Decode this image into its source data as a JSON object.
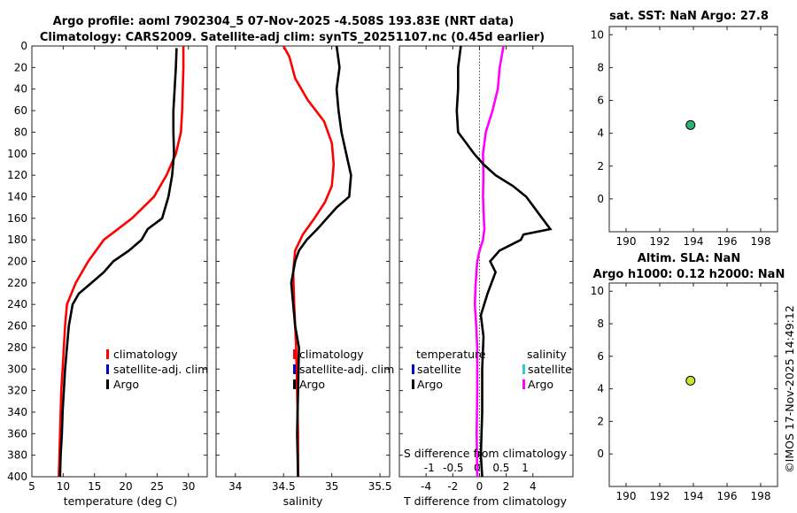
{
  "titles": {
    "main_line1": "Argo profile: aoml 7902304_5 07-Nov-2025 -4.508S 193.83E (NRT data)",
    "main_line2": "Climatology: CARS2009. Satellite-adj clim: synTS_20251107.nc (0.45d earlier)",
    "sst": "sat. SST: NaN Argo: 27.8",
    "sla_line1": "Altim. SLA: NaN",
    "sla_line2": "Argo h1000: 0.12 h2000: NaN"
  },
  "footer": {
    "timestamp": "©IMOS 17-Nov-2025 14:49:12"
  },
  "colors": {
    "climatology": "#ff0000",
    "satellite": "#0000cc",
    "argo": "#000000",
    "argo_salinity_diff": "#ff00ff",
    "satellite_salinity": "#33cccc",
    "sst_marker": "#2db37a",
    "sla_marker": "#c8e630"
  },
  "chart_data": [
    {
      "id": "temperature",
      "type": "line",
      "xlabel": "temperature (deg C)",
      "ylabel": "",
      "xlim": [
        5,
        33
      ],
      "ylim": [
        400,
        0
      ],
      "xticks": [
        "5",
        "10",
        "15",
        "20",
        "25",
        "30"
      ],
      "xtick_values": [
        5,
        10,
        15,
        20,
        25,
        30
      ],
      "yticks": [
        "0",
        "20",
        "40",
        "60",
        "80",
        "100",
        "120",
        "140",
        "160",
        "180",
        "200",
        "220",
        "240",
        "260",
        "280",
        "300",
        "320",
        "340",
        "360",
        "380",
        "400"
      ],
      "ytick_values": [
        0,
        20,
        40,
        60,
        80,
        100,
        120,
        140,
        160,
        180,
        200,
        220,
        240,
        260,
        280,
        300,
        320,
        340,
        360,
        380,
        400
      ],
      "legend": [
        "climatology",
        "satellite-adj. clim",
        "Argo"
      ],
      "series": [
        {
          "name": "climatology",
          "color": "#ff0000",
          "points": [
            [
              29.2,
              0
            ],
            [
              29.2,
              20
            ],
            [
              29.1,
              40
            ],
            [
              29.0,
              60
            ],
            [
              28.8,
              80
            ],
            [
              28.0,
              100
            ],
            [
              26.5,
              120
            ],
            [
              24.5,
              140
            ],
            [
              21,
              160
            ],
            [
              16.5,
              180
            ],
            [
              14,
              200
            ],
            [
              12,
              220
            ],
            [
              10.6,
              240
            ],
            [
              10.3,
              260
            ],
            [
              10.1,
              280
            ],
            [
              9.9,
              300
            ],
            [
              9.7,
              320
            ],
            [
              9.6,
              340
            ],
            [
              9.5,
              360
            ],
            [
              9.4,
              380
            ],
            [
              9.3,
              400
            ]
          ]
        },
        {
          "name": "Argo",
          "color": "#000000",
          "points": [
            [
              28.1,
              2
            ],
            [
              28.0,
              20
            ],
            [
              27.8,
              40
            ],
            [
              27.6,
              60
            ],
            [
              27.6,
              80
            ],
            [
              27.7,
              100
            ],
            [
              27.4,
              120
            ],
            [
              26.8,
              140
            ],
            [
              25.8,
              160
            ],
            [
              23.5,
              170
            ],
            [
              22.5,
              180
            ],
            [
              20.5,
              190
            ],
            [
              18,
              200
            ],
            [
              16.5,
              210
            ],
            [
              14.5,
              220
            ],
            [
              12.5,
              230
            ],
            [
              11.5,
              240
            ],
            [
              10.9,
              260
            ],
            [
              10.6,
              280
            ],
            [
              10.3,
              300
            ],
            [
              10.1,
              320
            ],
            [
              9.9,
              340
            ],
            [
              9.8,
              360
            ],
            [
              9.6,
              380
            ],
            [
              9.5,
              400
            ]
          ]
        }
      ]
    },
    {
      "id": "salinity",
      "type": "line",
      "xlabel": "salinity",
      "xlim": [
        33.8,
        35.6
      ],
      "ylim": [
        400,
        0
      ],
      "xticks": [
        "34",
        "34.5",
        "35",
        "35.5"
      ],
      "xtick_values": [
        34,
        34.5,
        35,
        35.5
      ],
      "legend": [
        "climatology",
        "satellite-adj. clim",
        "Argo"
      ],
      "series": [
        {
          "name": "climatology",
          "color": "#ff0000",
          "points": [
            [
              34.5,
              0
            ],
            [
              34.56,
              10
            ],
            [
              34.62,
              30
            ],
            [
              34.75,
              50
            ],
            [
              34.92,
              70
            ],
            [
              35.0,
              90
            ],
            [
              35.02,
              110
            ],
            [
              35.0,
              130
            ],
            [
              34.93,
              145
            ],
            [
              34.82,
              160
            ],
            [
              34.7,
              175
            ],
            [
              34.62,
              190
            ],
            [
              34.6,
              210
            ],
            [
              34.61,
              240
            ],
            [
              34.63,
              280
            ],
            [
              34.64,
              320
            ],
            [
              34.65,
              360
            ],
            [
              34.65,
              400
            ]
          ]
        },
        {
          "name": "Argo",
          "color": "#000000",
          "points": [
            [
              35.05,
              0
            ],
            [
              35.08,
              20
            ],
            [
              35.05,
              40
            ],
            [
              35.07,
              60
            ],
            [
              35.1,
              80
            ],
            [
              35.15,
              100
            ],
            [
              35.2,
              120
            ],
            [
              35.18,
              140
            ],
            [
              35.05,
              150
            ],
            [
              34.95,
              160
            ],
            [
              34.85,
              170
            ],
            [
              34.74,
              180
            ],
            [
              34.66,
              190
            ],
            [
              34.62,
              200
            ],
            [
              34.58,
              220
            ],
            [
              34.6,
              240
            ],
            [
              34.62,
              260
            ],
            [
              34.66,
              280
            ],
            [
              34.65,
              320
            ],
            [
              34.64,
              360
            ],
            [
              34.65,
              400
            ]
          ]
        }
      ]
    },
    {
      "id": "differences",
      "type": "line",
      "xlabel": "T difference from climatology",
      "xlabel_top": "S difference from climatology",
      "xlim": [
        -6,
        7
      ],
      "ylim": [
        400,
        0
      ],
      "xticks": [
        "-4",
        "-2",
        "0",
        "2",
        "4"
      ],
      "xtick_values": [
        -4,
        -2,
        0,
        2,
        4
      ],
      "xticks_top": [
        "-1",
        "-0.5",
        "0",
        "0.5",
        "1"
      ],
      "xtick_top_values": [
        -1,
        -0.5,
        0,
        0.5,
        1
      ],
      "legend_headers": [
        "temperature",
        "salinity"
      ],
      "legend_temperature": [
        "satellite",
        "Argo"
      ],
      "legend_salinity": [
        "satellite",
        "Argo"
      ],
      "series": [
        {
          "name": "T difference (Argo)",
          "color": "#000000",
          "points": [
            [
              -1.4,
              0
            ],
            [
              -1.6,
              20
            ],
            [
              -1.6,
              40
            ],
            [
              -1.7,
              60
            ],
            [
              -1.6,
              80
            ],
            [
              -1.0,
              90
            ],
            [
              -0.4,
              100
            ],
            [
              0.3,
              110
            ],
            [
              1.2,
              120
            ],
            [
              2.5,
              130
            ],
            [
              3.5,
              140
            ],
            [
              4.7,
              160
            ],
            [
              5.3,
              170
            ],
            [
              3.3,
              175
            ],
            [
              3.1,
              180
            ],
            [
              1.5,
              190
            ],
            [
              0.8,
              200
            ],
            [
              1.2,
              210
            ],
            [
              0.6,
              230
            ],
            [
              0.1,
              250
            ],
            [
              0.3,
              270
            ],
            [
              0.2,
              300
            ],
            [
              0.2,
              340
            ],
            [
              0.1,
              380
            ],
            [
              0.2,
              400
            ]
          ]
        },
        {
          "name": "S difference (Argo)",
          "color": "#ff00ff",
          "points": [
            [
              0.55,
              0
            ],
            [
              0.47,
              20
            ],
            [
              0.43,
              40
            ],
            [
              0.32,
              60
            ],
            [
              0.18,
              80
            ],
            [
              0.12,
              100
            ],
            [
              0.13,
              120
            ],
            [
              0.12,
              140
            ],
            [
              0.14,
              160
            ],
            [
              0.15,
              170
            ],
            [
              0.12,
              180
            ],
            [
              0.05,
              190
            ],
            [
              0.0,
              200
            ],
            [
              -0.03,
              220
            ],
            [
              -0.05,
              240
            ],
            [
              -0.02,
              260
            ],
            [
              0.0,
              280
            ],
            [
              0.0,
              320
            ],
            [
              -0.01,
              360
            ],
            [
              0.0,
              400
            ]
          ]
        }
      ]
    },
    {
      "id": "sst",
      "type": "scatter",
      "title": "sat. SST: NaN Argo: 27.8",
      "xlim": [
        189,
        199
      ],
      "ylim": [
        -2,
        10.5
      ],
      "xticks": [
        "190",
        "192",
        "194",
        "196",
        "198"
      ],
      "xtick_values": [
        190,
        192,
        194,
        196,
        198
      ],
      "yticks": [
        "0",
        "2",
        "4",
        "6",
        "8",
        "10"
      ],
      "ytick_values": [
        0,
        2,
        4,
        6,
        8,
        10
      ],
      "points": [
        [
          193.83,
          4.5
        ]
      ]
    },
    {
      "id": "sla",
      "type": "scatter",
      "title": "Altim. SLA: NaN / Argo h1000: 0.12 h2000: NaN",
      "xlim": [
        189,
        199
      ],
      "ylim": [
        -2,
        10.5
      ],
      "xticks": [
        "190",
        "192",
        "194",
        "196",
        "198"
      ],
      "xtick_values": [
        190,
        192,
        194,
        196,
        198
      ],
      "yticks": [
        "0",
        "2",
        "4",
        "6",
        "8",
        "10"
      ],
      "ytick_values": [
        0,
        2,
        4,
        6,
        8,
        10
      ],
      "points": [
        [
          193.83,
          4.5
        ]
      ]
    }
  ]
}
